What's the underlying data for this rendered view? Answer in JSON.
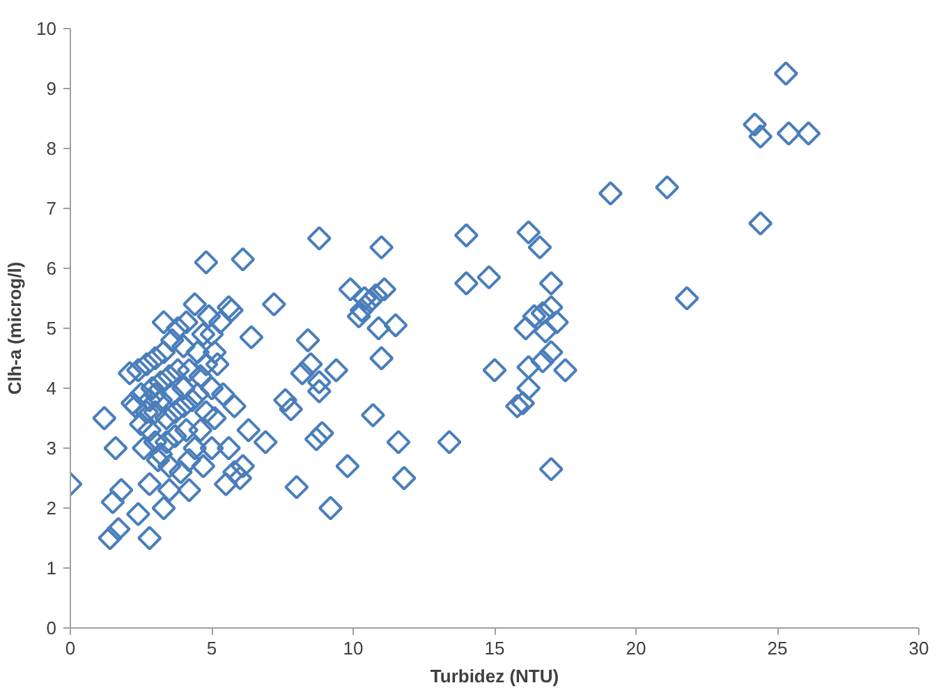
{
  "chart_data": {
    "type": "scatter",
    "xlabel": "Turbidez (NTU)",
    "ylabel": "Clh-a (microg/l)",
    "xlim": [
      0,
      30
    ],
    "ylim": [
      0,
      10
    ],
    "xticks": [
      0,
      5,
      10,
      15,
      20,
      25,
      30
    ],
    "yticks": [
      0,
      1,
      2,
      3,
      4,
      5,
      6,
      7,
      8,
      9,
      10
    ],
    "grid": false,
    "marker": "diamond",
    "series": [
      {
        "color": "#4a7ebb",
        "x": [
          25.3,
          24.2,
          24.4,
          25.4,
          26.1,
          24.4,
          21.1,
          19.1,
          21.8,
          16.2,
          16.6,
          14.0,
          14.0,
          14.8,
          17.0,
          17.0,
          16.4,
          16.7,
          17.2,
          16.1,
          16.8,
          17.0,
          16.7,
          17.5,
          16.2,
          15.0,
          16.2,
          16.0,
          15.8,
          17.0,
          13.4,
          11.0,
          8.8,
          9.9,
          10.4,
          10.6,
          10.8,
          11.1,
          10.3,
          10.9,
          11.5,
          10.2,
          11.0,
          9.4,
          8.4,
          8.5,
          8.2,
          8.8,
          8.8,
          8.7,
          8.9,
          10.7,
          11.6,
          9.8,
          11.8,
          9.2,
          8.0,
          7.2,
          6.1,
          4.8,
          5.6,
          5.7,
          6.4,
          7.6,
          7.8,
          6.9,
          6.3,
          5.8,
          6.1,
          5.8,
          6.0,
          5.5,
          0,
          1.2,
          1.4,
          1.7,
          1.5,
          1.8,
          2.4,
          2.8,
          1.6,
          2.2,
          3.3,
          2.8,
          4.2,
          3.5,
          2.1,
          2.4,
          2.7,
          3.0,
          3.3,
          3.6,
          3.8,
          4.1,
          4.4,
          3.3,
          4.0,
          4.5,
          5.0,
          5.2,
          5.0,
          4.8,
          4.6,
          4.4,
          4.2,
          3.9,
          3.5,
          3.2,
          3.0,
          2.8,
          2.5,
          2.3,
          2.5,
          2.9,
          3.2,
          3.5,
          3.8,
          4.2,
          4.6,
          3.0,
          3.4,
          3.7,
          4.0,
          4.3,
          3.6,
          3.2,
          2.7,
          4.1,
          3.7,
          3.4,
          4.8,
          5.1,
          5.3,
          4.9,
          4.7,
          5.4,
          5.1,
          5.6,
          5.0,
          4.7,
          3.1,
          2.6,
          4.5,
          4.0,
          3.0,
          2.8
        ],
        "values": [
          9.25,
          8.4,
          8.2,
          8.25,
          8.25,
          6.75,
          7.35,
          7.25,
          5.5,
          6.6,
          6.35,
          6.55,
          5.75,
          5.85,
          5.75,
          5.35,
          5.2,
          5.25,
          5.1,
          5.0,
          4.95,
          4.6,
          4.45,
          4.3,
          4.35,
          4.3,
          4.0,
          3.75,
          3.7,
          2.65,
          3.1,
          6.35,
          6.5,
          5.65,
          5.5,
          5.45,
          5.55,
          5.65,
          5.3,
          5.0,
          5.05,
          5.2,
          4.5,
          4.3,
          4.8,
          4.4,
          4.25,
          4.1,
          3.95,
          3.15,
          3.25,
          3.55,
          3.1,
          2.7,
          2.5,
          2.0,
          2.35,
          5.4,
          6.15,
          6.1,
          5.35,
          5.3,
          4.85,
          3.8,
          3.65,
          3.1,
          3.3,
          3.7,
          2.7,
          2.6,
          2.5,
          2.4,
          2.4,
          3.5,
          1.5,
          1.65,
          2.1,
          2.3,
          1.9,
          1.5,
          3.0,
          3.75,
          2.0,
          2.4,
          2.3,
          2.3,
          4.25,
          4.3,
          4.4,
          4.5,
          4.6,
          4.8,
          5.0,
          5.1,
          5.4,
          5.1,
          4.7,
          4.6,
          4.9,
          4.4,
          4.0,
          3.6,
          3.3,
          3.0,
          2.8,
          2.6,
          2.7,
          2.9,
          3.1,
          3.3,
          3.4,
          3.7,
          3.9,
          4.0,
          4.1,
          4.2,
          4.3,
          4.3,
          4.2,
          3.6,
          3.5,
          3.6,
          3.7,
          3.8,
          3.9,
          3.8,
          3.6,
          3.3,
          3.2,
          3.1,
          4.4,
          4.6,
          5.1,
          5.2,
          4.9,
          3.9,
          3.5,
          3.0,
          3.0,
          2.7,
          2.8,
          3.0,
          3.9,
          4.0,
          3.9,
          3.8
        ]
      }
    ]
  }
}
